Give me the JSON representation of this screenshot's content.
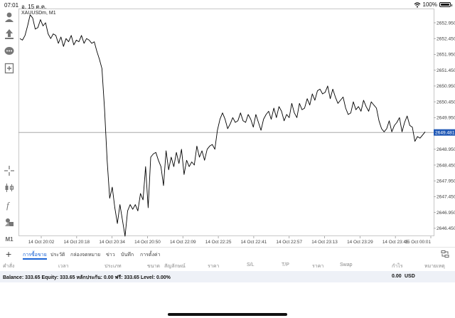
{
  "status_bar": {
    "time": "07:01",
    "date": "อ. 15 ต.ค.",
    "battery": "100%"
  },
  "left_toolbar": {
    "icons": [
      "account-icon",
      "trade-icon",
      "chat-icon",
      "new-order-icon",
      "crosshair-icon",
      "chart-type-icon",
      "indicator-icon",
      "objects-icon"
    ],
    "timeframe": "M1"
  },
  "chart": {
    "symbol_label": "XAUUSDm, M1",
    "current_price_label": "2649.481",
    "line_color": "#000000",
    "price_tag_color": "#1e57b5"
  },
  "chart_data": {
    "type": "line",
    "x_ticks": [
      "14 Oct 20:02",
      "14 Oct 20:18",
      "14 Oct 20:34",
      "14 Oct 20:50",
      "14 Oct 22:09",
      "14 Oct 22:25",
      "14 Oct 22:41",
      "14 Oct 22:57",
      "14 Oct 23:13",
      "14 Oct 23:29",
      "14 Oct 23:45",
      "15 Oct 00:01"
    ],
    "y_ticks": [
      "2652.950",
      "2652.450",
      "2651.950",
      "2651.450",
      "2650.950",
      "2650.450",
      "2649.950",
      "2648.950",
      "2648.450",
      "2647.950",
      "2647.450",
      "2646.950",
      "2646.450"
    ],
    "ylim": [
      2646.2,
      2653.4
    ],
    "current_price": 2649.481,
    "series": [
      {
        "values": [
          2652.45,
          2652.4,
          2652.55,
          2652.85,
          2653.2,
          2653.1,
          2652.75,
          2652.8,
          2653.05,
          2652.85,
          2652.95,
          2652.6,
          2652.45,
          2652.6,
          2652.55,
          2652.3,
          2652.5,
          2652.2,
          2652.45,
          2652.35,
          2652.55,
          2652.25,
          2652.4,
          2652.35,
          2652.55,
          2652.3,
          2652.45,
          2652.4,
          2652.3,
          2652.35,
          2652.05,
          2651.8,
          2651.5,
          2650.2,
          2648.6,
          2647.4,
          2647.75,
          2647.1,
          2646.6,
          2647.2,
          2646.7,
          2646.2,
          2647.0,
          2647.2,
          2647.05,
          2647.2,
          2647.0,
          2647.55,
          2647.35,
          2648.4,
          2647.1,
          2648.7,
          2648.8,
          2648.85,
          2648.6,
          2648.4,
          2647.8,
          2648.9,
          2648.3,
          2648.7,
          2648.4,
          2648.85,
          2648.5,
          2648.95,
          2648.15,
          2648.6,
          2648.4,
          2648.55,
          2648.45,
          2649.05,
          2648.7,
          2648.9,
          2648.6,
          2648.95,
          2649.05,
          2649.1,
          2648.95,
          2649.55,
          2649.9,
          2650.1,
          2649.9,
          2649.6,
          2649.75,
          2649.95,
          2649.8,
          2649.85,
          2650.1,
          2649.85,
          2649.8,
          2650.05,
          2649.9,
          2649.65,
          2650.05,
          2649.8,
          2649.55,
          2649.9,
          2650.05,
          2650.15,
          2649.9,
          2650.25,
          2649.95,
          2650.3,
          2650.15,
          2649.85,
          2650.05,
          2649.95,
          2650.4,
          2650.1,
          2649.95,
          2650.4,
          2650.2,
          2650.25,
          2650.55,
          2650.35,
          2650.7,
          2650.5,
          2650.8,
          2650.85,
          2650.7,
          2650.75,
          2650.95,
          2650.55,
          2650.85,
          2650.6,
          2650.4,
          2650.5,
          2650.6,
          2650.25,
          2650.05,
          2650.1,
          2650.45,
          2650.2,
          2650.3,
          2650.15,
          2650.5,
          2650.3,
          2650.15,
          2650.45,
          2650.35,
          2650.25,
          2649.85,
          2649.6,
          2649.5,
          2649.6,
          2649.85,
          2649.5,
          2649.7,
          2649.8,
          2649.95,
          2649.5,
          2649.8,
          2650.0,
          2649.7,
          2649.65,
          2649.2,
          2649.35,
          2649.3,
          2649.4,
          2649.5
        ]
      }
    ]
  },
  "tabs": {
    "plus": "+",
    "items": [
      "การซื้อขาย",
      "ประวัติ",
      "กล่องจดหมาย",
      "ข่าว",
      "บันทึก",
      "การตั้งค่า"
    ]
  },
  "columns": [
    "คำสั่ง",
    "เวลา",
    "ประเภท",
    "ขนาด",
    "สัญลักษณ์",
    "ราคา",
    "S/L",
    "T/P",
    "ราคา",
    "Swap",
    "กำไร",
    "หมายเหตุ"
  ],
  "balance": {
    "summary": "Balance: 333.65 Equity: 333.65 หลักประกัน: 0.00 ฟรี: 333.65 Level: 0.00%",
    "amount": "0.00",
    "currency": "USD"
  }
}
